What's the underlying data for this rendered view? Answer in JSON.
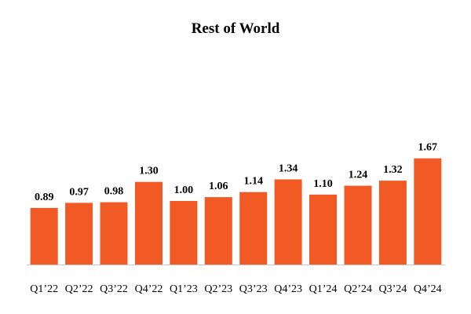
{
  "chart_data": {
    "type": "bar",
    "title": "Rest of World",
    "categories": [
      "Q1’22",
      "Q2’22",
      "Q3’22",
      "Q4’22",
      "Q1’23",
      "Q2’23",
      "Q3’23",
      "Q4’23",
      "Q1’24",
      "Q2’24",
      "Q3’24",
      "Q4’24"
    ],
    "values": [
      0.89,
      0.97,
      0.98,
      1.3,
      1.0,
      1.06,
      1.14,
      1.34,
      1.1,
      1.24,
      1.32,
      1.67
    ],
    "value_labels": [
      "0.89",
      "0.97",
      "0.98",
      "1.30",
      "1.00",
      "1.06",
      "1.14",
      "1.34",
      "1.10",
      "1.24",
      "1.32",
      "1.67"
    ],
    "xlabel": "",
    "ylabel": "",
    "ylim": [
      0,
      2.0
    ],
    "grid": false,
    "legend": "none",
    "bar_color": "#f15a24",
    "baseline_color": "#c8c8c8"
  }
}
